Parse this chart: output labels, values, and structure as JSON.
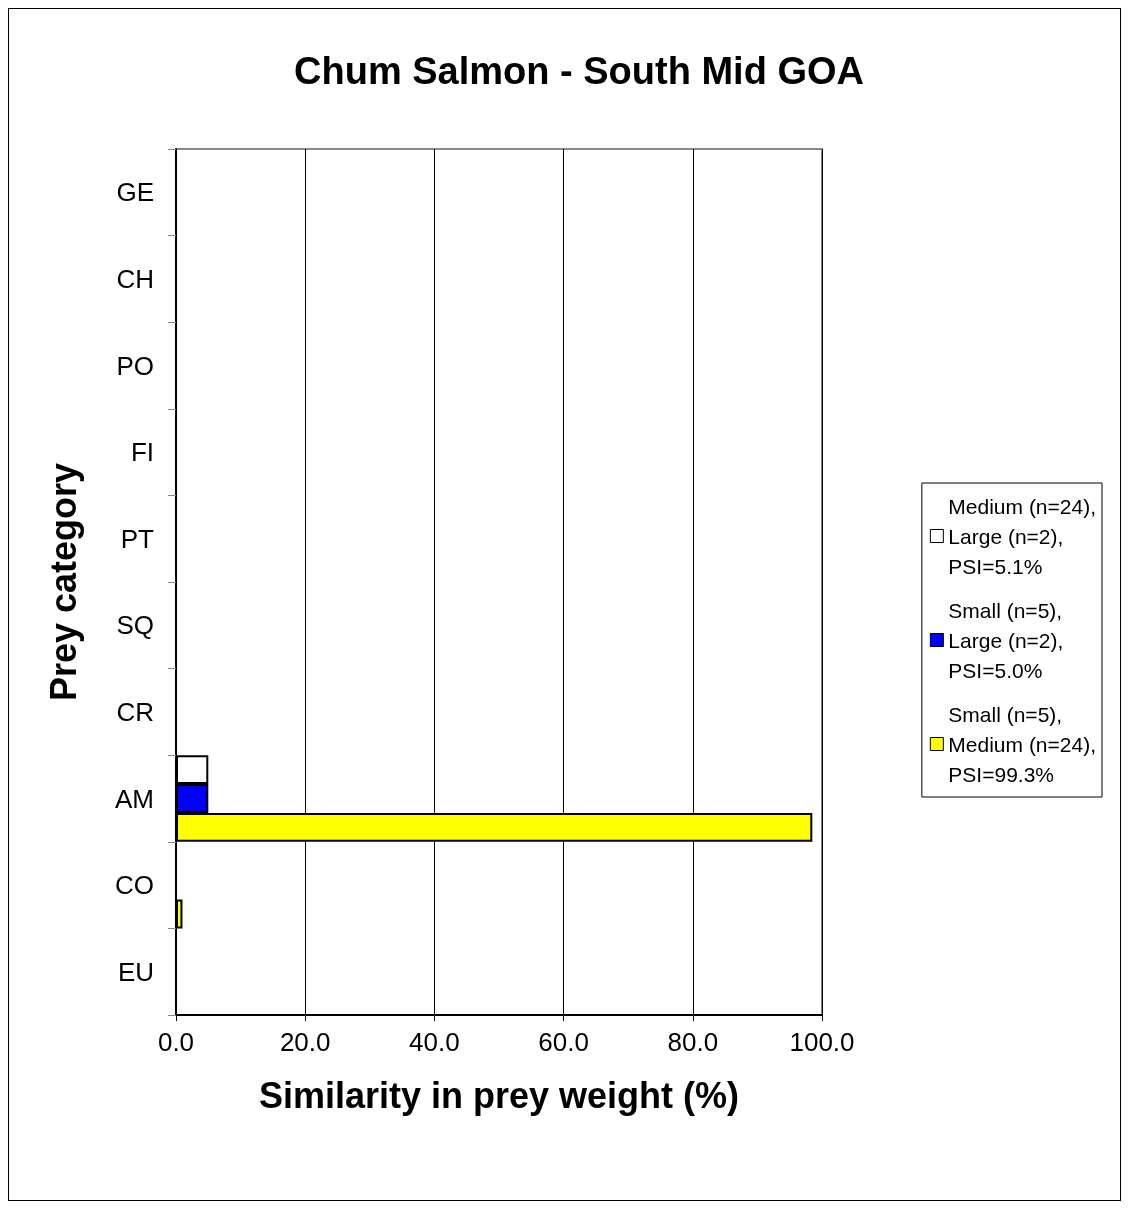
{
  "chart_data": {
    "type": "bar",
    "orientation": "horizontal",
    "title": "Chum Salmon - South Mid GOA",
    "xlabel": "Similarity in prey weight (%)",
    "ylabel": "Prey category",
    "categories": [
      "GE",
      "CH",
      "PO",
      "FI",
      "PT",
      "SQ",
      "CR",
      "AM",
      "CO",
      "EU"
    ],
    "series": [
      {
        "name": "Medium (n=24),\nLarge (n=2),\nPSI=5.1%",
        "color": "#ffffff",
        "values": [
          null,
          null,
          null,
          null,
          null,
          null,
          null,
          5.0,
          null,
          null
        ]
      },
      {
        "name": "Small (n=5),\nLarge (n=2),\nPSI=5.0%",
        "color": "#0000ff",
        "values": [
          null,
          null,
          null,
          null,
          null,
          null,
          null,
          5.0,
          null,
          null
        ]
      },
      {
        "name": "Small (n=5),\nMedium (n=24),\nPSI=99.3%",
        "color": "#ffff00",
        "values": [
          null,
          null,
          null,
          null,
          null,
          null,
          null,
          98.5,
          1.0,
          null
        ]
      }
    ],
    "xlim": [
      0,
      100
    ],
    "xticks": [
      {
        "value": 0,
        "label": "0.0"
      },
      {
        "value": 20,
        "label": "20.0"
      },
      {
        "value": 40,
        "label": "40.0"
      },
      {
        "value": 60,
        "label": "60.0"
      },
      {
        "value": 80,
        "label": "80.0"
      },
      {
        "value": 100,
        "label": "100.0"
      }
    ],
    "grid": "x",
    "legend": "right"
  }
}
